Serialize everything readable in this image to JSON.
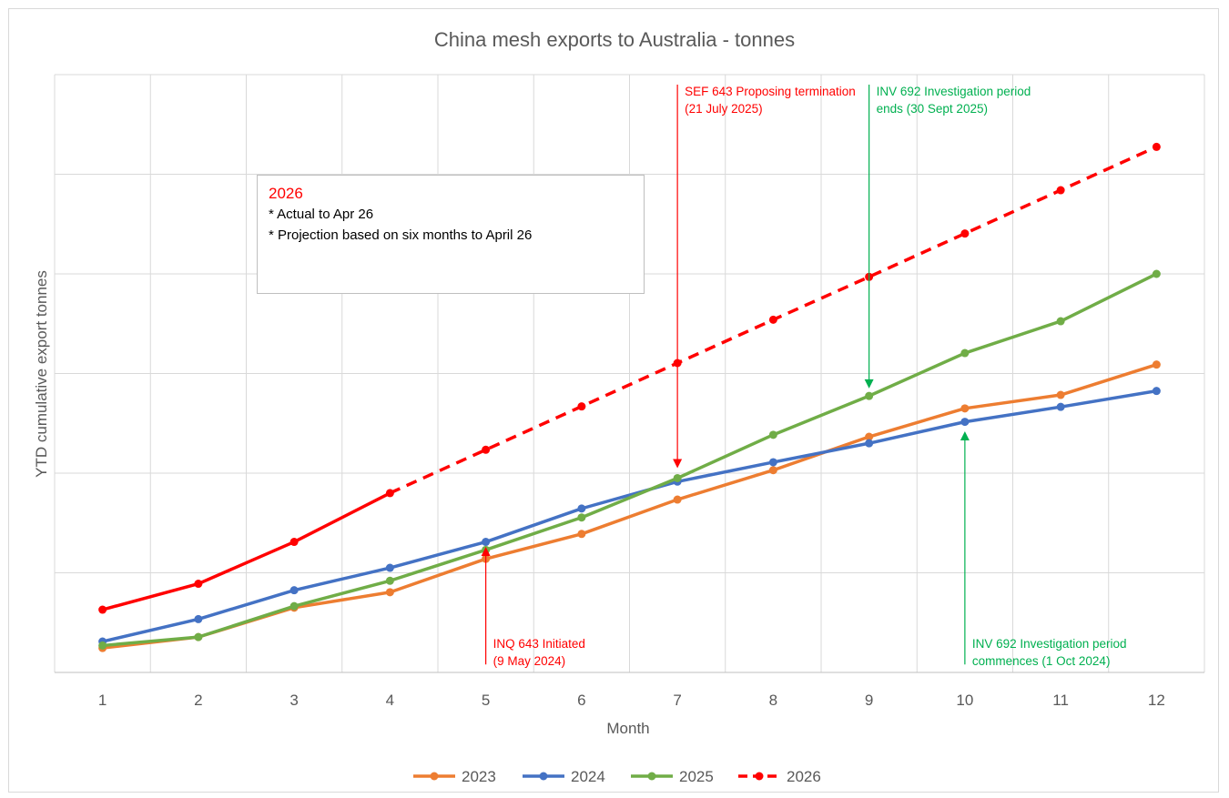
{
  "chart_data": {
    "type": "line",
    "title": "China mesh exports to Australia - tonnes",
    "xlabel": "Month",
    "ylabel": "YTD cumulative export tonnes",
    "categories": [
      "1",
      "2",
      "3",
      "4",
      "5",
      "6",
      "7",
      "8",
      "9",
      "10",
      "11",
      "12"
    ],
    "ylim": [
      0,
      6000
    ],
    "grid": true,
    "legend_position": "bottom",
    "series": [
      {
        "name": "2023",
        "color": "#ed7d31",
        "style": "solid",
        "values": [
          245,
          355,
          650,
          805,
          1140,
          1390,
          1735,
          2030,
          2365,
          2650,
          2785,
          3090
        ]
      },
      {
        "name": "2024",
        "color": "#4472c4",
        "style": "solid",
        "values": [
          310,
          535,
          825,
          1050,
          1310,
          1645,
          1915,
          2110,
          2300,
          2515,
          2665,
          2825
        ]
      },
      {
        "name": "2025",
        "color": "#70ad47",
        "style": "solid",
        "values": [
          270,
          355,
          665,
          920,
          1230,
          1555,
          1950,
          2385,
          2775,
          3205,
          3525,
          4000
        ]
      },
      {
        "name": "2026",
        "color": "#ff0000",
        "style": "dashed-after-4",
        "values": [
          630,
          890,
          1310,
          1800,
          2235,
          2670,
          3105,
          3540,
          3970,
          4405,
          4840,
          5275
        ]
      }
    ],
    "annotations": [
      {
        "lines": [
          "SEF 643 Proposing termination",
          "(21 July 2025)"
        ],
        "color": "#ff0000",
        "x": 7,
        "arrow_from_y": 5900,
        "arrow_to_y": 2050
      },
      {
        "lines": [
          "INV 692 Investigation period",
          "ends (30 Sept 2025)"
        ],
        "color": "#00b050",
        "x": 9,
        "arrow_from_y": 5900,
        "arrow_to_y": 2850
      },
      {
        "lines": [
          "INQ 643 Initiated",
          "(9 May 2024)"
        ],
        "color": "#ff0000",
        "x": 5,
        "arrow_from_y": 80,
        "arrow_to_y": 1260
      },
      {
        "lines": [
          "INV 692 Investigation period",
          "commences (1 Oct 2024)"
        ],
        "color": "#00b050",
        "x": 10,
        "arrow_from_y": 80,
        "arrow_to_y": 2420
      }
    ],
    "note": {
      "title": "2026",
      "lines": [
        "* Actual to Apr 26",
        "* Projection based on six months to April 26"
      ]
    }
  }
}
